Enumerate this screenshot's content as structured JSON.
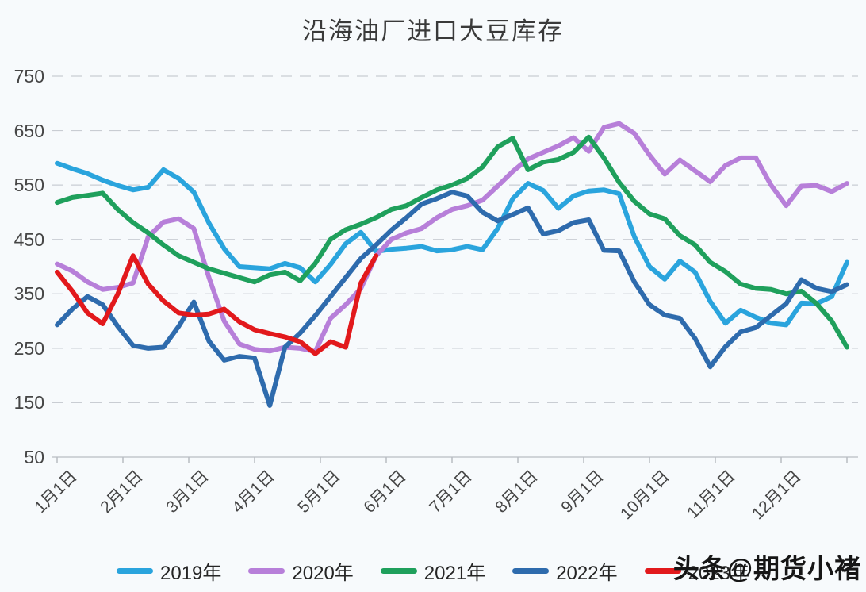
{
  "title": "沿海油厂进口大豆库存",
  "watermark": "头条@期货小褚",
  "chart_data": {
    "type": "line",
    "title": "沿海油厂进口大豆库存",
    "xlabel": "",
    "ylabel": "",
    "ylim": [
      50,
      750
    ],
    "grid": "horizontal-dashed",
    "legend_position": "bottom",
    "x_unit": "weekly points across one year",
    "x_tick_labels": [
      "1月1日",
      "2月1日",
      "3月1日",
      "4月1日",
      "5月1日",
      "6月1日",
      "7月1日",
      "8月1日",
      "9月1日",
      "10月1日",
      "11月1日",
      "12月1日"
    ],
    "y_ticks": [
      750,
      650,
      550,
      450,
      350,
      250,
      150,
      50
    ],
    "series": [
      {
        "name": "2019年",
        "color": "#2aa4dd",
        "values": [
          590,
          580,
          571,
          559,
          549,
          541,
          546,
          578,
          562,
          537,
          480,
          433,
          400,
          398,
          396,
          406,
          398,
          372,
          404,
          442,
          463,
          428,
          432,
          434,
          437,
          429,
          431,
          437,
          431,
          470,
          525,
          553,
          540,
          507,
          530,
          539,
          541,
          534,
          455,
          400,
          377,
          410,
          390,
          336,
          296,
          320,
          307,
          296,
          293,
          333,
          332,
          345,
          408
        ]
      },
      {
        "name": "2020年",
        "color": "#b77fd9",
        "values": [
          405,
          392,
          372,
          358,
          362,
          370,
          455,
          482,
          488,
          470,
          380,
          300,
          258,
          248,
          245,
          252,
          250,
          244,
          305,
          330,
          360,
          420,
          450,
          462,
          470,
          490,
          505,
          512,
          522,
          548,
          575,
          598,
          610,
          622,
          637,
          612,
          656,
          663,
          645,
          605,
          570,
          596,
          576,
          556,
          586,
          600,
          600,
          550,
          512,
          548,
          549,
          538,
          553
        ]
      },
      {
        "name": "2021年",
        "color": "#1fa05c",
        "values": [
          518,
          527,
          531,
          535,
          505,
          481,
          462,
          440,
          420,
          408,
          396,
          388,
          380,
          372,
          385,
          390,
          374,
          406,
          450,
          468,
          478,
          490,
          505,
          512,
          527,
          541,
          550,
          562,
          583,
          620,
          636,
          578,
          592,
          597,
          610,
          638,
          600,
          555,
          520,
          497,
          488,
          457,
          440,
          408,
          391,
          368,
          360,
          358,
          350,
          355,
          332,
          300,
          252
        ]
      },
      {
        "name": "2022年",
        "color": "#2e6bad",
        "values": [
          293,
          322,
          345,
          330,
          290,
          255,
          250,
          252,
          290,
          335,
          263,
          228,
          235,
          232,
          145,
          252,
          278,
          310,
          345,
          380,
          415,
          440,
          467,
          490,
          515,
          525,
          537,
          530,
          500,
          484,
          496,
          508,
          460,
          466,
          481,
          486,
          430,
          429,
          372,
          330,
          311,
          305,
          268,
          216,
          253,
          280,
          288,
          310,
          332,
          376,
          360,
          354,
          367
        ]
      },
      {
        "name": "2023年",
        "color": "#e2191c",
        "values": [
          390,
          355,
          315,
          295,
          350,
          420,
          368,
          337,
          315,
          311,
          313,
          322,
          299,
          284,
          277,
          271,
          262,
          240,
          262,
          252,
          370,
          420
        ]
      }
    ]
  }
}
